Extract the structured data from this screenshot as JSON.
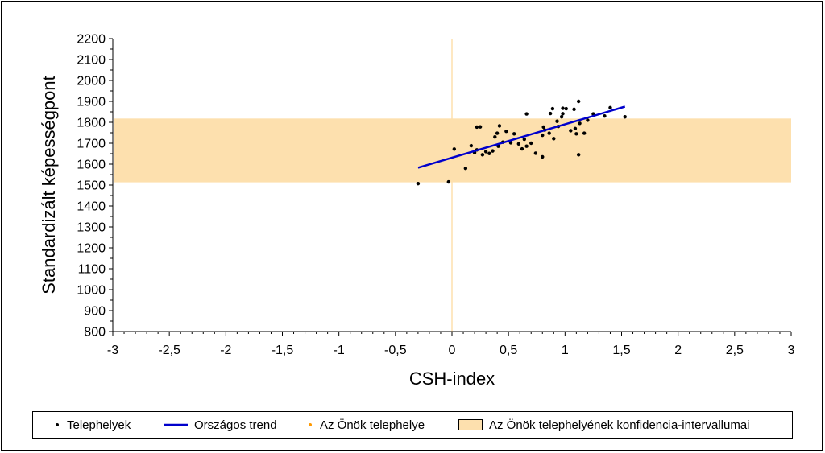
{
  "colors": {
    "points": "#000000",
    "trend": "#0000cc",
    "own_site": "#ff9900",
    "confidence_band": "#fde0ae",
    "zero_line": "#fde0ae"
  },
  "legend": {
    "sites": "Telephelyek",
    "trend": "Országos trend",
    "own_site": "Az Önök telephelye",
    "confidence": "Az Önök telephelyének konfidencia-intervallumai"
  },
  "chart_data": {
    "type": "scatter",
    "xlabel": "CSH-index",
    "ylabel": "Standardizált képességpont",
    "xlim": [
      -3,
      3
    ],
    "ylim": [
      800,
      2200
    ],
    "x_ticks": [
      -3,
      -2.5,
      -2,
      -1.5,
      -1,
      -0.5,
      0,
      0.5,
      1,
      1.5,
      2,
      2.5,
      3
    ],
    "x_tick_labels": [
      "-3",
      "-2,5",
      "-2",
      "-1,5",
      "-1",
      "-0,5",
      "0",
      "0,5",
      "1",
      "1,5",
      "2",
      "2,5",
      "3"
    ],
    "y_ticks": [
      800,
      900,
      1000,
      1100,
      1200,
      1300,
      1400,
      1500,
      1600,
      1700,
      1800,
      1900,
      2000,
      2100,
      2200
    ],
    "y_tick_labels": [
      "800",
      "900",
      "1000",
      "1100",
      "1200",
      "1300",
      "1400",
      "1500",
      "1600",
      "1700",
      "1800",
      "1900",
      "2000",
      "2100",
      "2200"
    ],
    "confidence_band": [
      1513,
      1818
    ],
    "own_site_x": 0,
    "trend_line": {
      "x": [
        -0.3,
        1.53
      ],
      "y": [
        1583,
        1875
      ]
    },
    "series": [
      {
        "name": "Telephelyek",
        "points": [
          [
            -0.3,
            1507
          ],
          [
            -0.03,
            1515
          ],
          [
            0.02,
            1672
          ],
          [
            0.12,
            1580
          ],
          [
            0.17,
            1688
          ],
          [
            0.2,
            1655
          ],
          [
            0.22,
            1777
          ],
          [
            0.25,
            1778
          ],
          [
            0.22,
            1668
          ],
          [
            0.27,
            1645
          ],
          [
            0.3,
            1660
          ],
          [
            0.33,
            1651
          ],
          [
            0.36,
            1663
          ],
          [
            0.38,
            1730
          ],
          [
            0.4,
            1748
          ],
          [
            0.42,
            1783
          ],
          [
            0.41,
            1686
          ],
          [
            0.45,
            1705
          ],
          [
            0.48,
            1757
          ],
          [
            0.52,
            1702
          ],
          [
            0.55,
            1745
          ],
          [
            0.59,
            1697
          ],
          [
            0.62,
            1673
          ],
          [
            0.64,
            1719
          ],
          [
            0.66,
            1840
          ],
          [
            0.66,
            1686
          ],
          [
            0.7,
            1700
          ],
          [
            0.74,
            1652
          ],
          [
            0.8,
            1635
          ],
          [
            0.8,
            1738
          ],
          [
            0.81,
            1777
          ],
          [
            0.82,
            1763
          ],
          [
            0.86,
            1748
          ],
          [
            0.87,
            1842
          ],
          [
            0.89,
            1865
          ],
          [
            0.9,
            1722
          ],
          [
            0.93,
            1805
          ],
          [
            0.94,
            1780
          ],
          [
            0.97,
            1826
          ],
          [
            0.98,
            1841
          ],
          [
            0.98,
            1867
          ],
          [
            1.01,
            1865
          ],
          [
            1.05,
            1760
          ],
          [
            1.08,
            1862
          ],
          [
            1.09,
            1770
          ],
          [
            1.1,
            1745
          ],
          [
            1.12,
            1900
          ],
          [
            1.12,
            1645
          ],
          [
            1.13,
            1795
          ],
          [
            1.17,
            1748
          ],
          [
            1.2,
            1810
          ],
          [
            1.25,
            1840
          ],
          [
            1.35,
            1830
          ],
          [
            1.4,
            1870
          ],
          [
            1.53,
            1826
          ]
        ]
      }
    ]
  }
}
